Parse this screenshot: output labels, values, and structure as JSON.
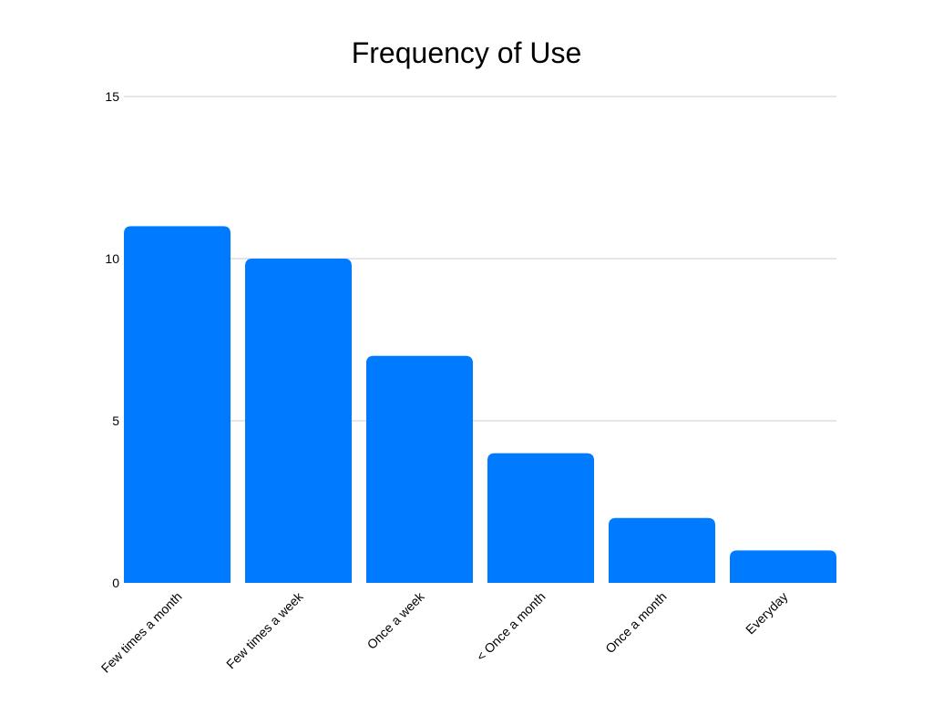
{
  "chart_data": {
    "type": "bar",
    "title": "Frequency of Use",
    "xlabel": "",
    "ylabel": "",
    "categories": [
      "Few times a month",
      "Few times a week",
      "Once a week",
      "< Once a month",
      "Once a month",
      "Everyday"
    ],
    "values": [
      11,
      10,
      7,
      4,
      2,
      1
    ],
    "ylim": [
      0,
      15
    ],
    "yticks": [
      0,
      5,
      10,
      15
    ],
    "grid": true,
    "legend": "none",
    "bar_color": "#007bff",
    "grid_color": "#cccccc"
  }
}
